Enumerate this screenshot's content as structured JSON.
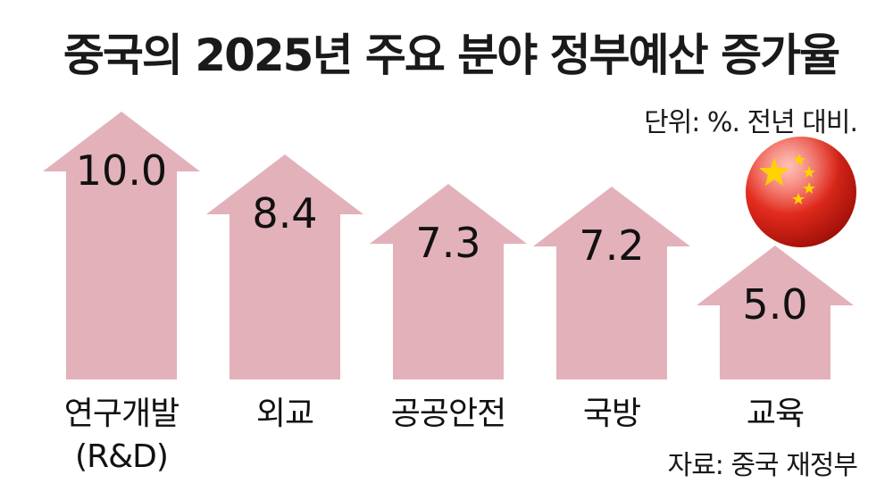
{
  "title": "중국의 2025년 주요 분야 정부예산 증가율",
  "unit_note": "단위: %. 전년 대비.",
  "source": "자료: 중국 재정부",
  "colors": {
    "arrow": "#e3b1ba",
    "text": "#111111",
    "flag_red": "#dd2222",
    "flag_star": "#ffd700"
  },
  "icons": {
    "flag": "china-flag-icon"
  },
  "chart_data": {
    "type": "bar",
    "categories": [
      "연구개발\n(R&D)",
      "외교",
      "공공안전",
      "국방",
      "교육"
    ],
    "values": [
      10.0,
      8.4,
      7.3,
      7.2,
      5.0
    ],
    "value_labels": [
      "10.0",
      "8.4",
      "7.3",
      "7.2",
      "5.0"
    ],
    "bar_shape": "arrow",
    "axis": "none",
    "grid": false,
    "legend": "none"
  }
}
